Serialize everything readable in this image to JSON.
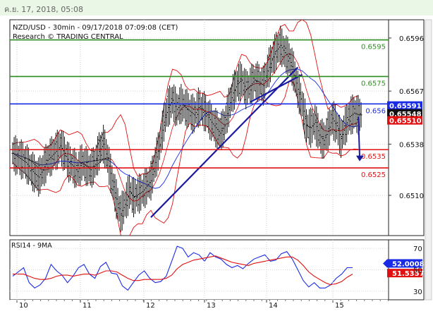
{
  "header": {
    "timestamp": "ค.ย. 17, 2018, 05:08"
  },
  "chart_data": [
    {
      "type": "line",
      "title": "NZD/USD - 30min - 09/17/2018 07:09:08 (CET)",
      "subtitle": "Research © TRADING CENTRAL",
      "ylim": [
        0.6488,
        0.6606
      ],
      "y_ticks": [
        {
          "value": 0.6596,
          "label": "0.6596"
        },
        {
          "value": 0.6567,
          "label": "0.6567"
        },
        {
          "value": 0.6538,
          "label": "0.6538"
        },
        {
          "value": 0.651,
          "label": "0.6510"
        }
      ],
      "x_ticks": [
        "10",
        "11",
        "12",
        "13",
        "14",
        "15"
      ],
      "levels": [
        {
          "value": 0.6595,
          "label": "0.6595",
          "color": "#2e8b22"
        },
        {
          "value": 0.6575,
          "label": "0.6575",
          "color": "#2e8b22"
        },
        {
          "value": 0.656,
          "label": "0.656",
          "color": "#1a2be6"
        },
        {
          "value": 0.6535,
          "label": "0.6535",
          "color": "#e01010"
        },
        {
          "value": 0.6525,
          "label": "0.6525",
          "color": "#e01010"
        }
      ],
      "price_badges": [
        {
          "value": 0.65591,
          "label": "0.65591",
          "bg": "#1a2be6"
        },
        {
          "value": 0.65548,
          "label": "0.65548",
          "bg": "#111111"
        },
        {
          "value": 0.6551,
          "label": "0.65510",
          "bg": "#e01010"
        }
      ],
      "price_path": [
        [
          0,
          0.6533
        ],
        [
          3,
          0.6528
        ],
        [
          5,
          0.6522
        ],
        [
          6,
          0.652
        ],
        [
          7,
          0.6524
        ],
        [
          8,
          0.6529
        ],
        [
          10,
          0.6534
        ],
        [
          11,
          0.6537
        ],
        [
          12,
          0.6533
        ],
        [
          13,
          0.6528
        ],
        [
          14,
          0.6526
        ],
        [
          15,
          0.6523
        ],
        [
          16,
          0.6528
        ],
        [
          17,
          0.6526
        ],
        [
          18,
          0.6524
        ],
        [
          19,
          0.6527
        ],
        [
          20,
          0.6534
        ],
        [
          21,
          0.6538
        ],
        [
          22,
          0.653
        ],
        [
          23,
          0.6518
        ],
        [
          24,
          0.6508
        ],
        [
          25,
          0.65
        ],
        [
          26,
          0.6505
        ],
        [
          27,
          0.6512
        ],
        [
          28,
          0.6509
        ],
        [
          30,
          0.6512
        ],
        [
          32,
          0.6518
        ],
        [
          33,
          0.6528
        ],
        [
          34,
          0.6537
        ],
        [
          35,
          0.655
        ],
        [
          36,
          0.6558
        ],
        [
          37,
          0.6562
        ],
        [
          38,
          0.6557
        ],
        [
          39,
          0.656
        ],
        [
          40,
          0.6558
        ],
        [
          41,
          0.6556
        ],
        [
          42,
          0.6554
        ],
        [
          43,
          0.6558
        ],
        [
          44,
          0.6557
        ],
        [
          45,
          0.6554
        ],
        [
          46,
          0.655
        ],
        [
          47,
          0.6547
        ],
        [
          48,
          0.6544
        ],
        [
          49,
          0.6548
        ],
        [
          50,
          0.6558
        ],
        [
          51,
          0.6566
        ],
        [
          52,
          0.6571
        ],
        [
          53,
          0.6573
        ],
        [
          54,
          0.6568
        ],
        [
          55,
          0.657
        ],
        [
          56,
          0.6573
        ],
        [
          57,
          0.6572
        ],
        [
          58,
          0.657
        ],
        [
          59,
          0.6578
        ],
        [
          60,
          0.6584
        ],
        [
          61,
          0.6589
        ],
        [
          62,
          0.6592
        ],
        [
          63,
          0.6588
        ],
        [
          64,
          0.6585
        ],
        [
          65,
          0.6578
        ],
        [
          66,
          0.6568
        ],
        [
          67,
          0.656
        ],
        [
          68,
          0.6548
        ],
        [
          69,
          0.6547
        ],
        [
          70,
          0.655
        ],
        [
          71,
          0.6543
        ],
        [
          72,
          0.654
        ],
        [
          73,
          0.6545
        ],
        [
          74,
          0.6552
        ],
        [
          75,
          0.6548
        ],
        [
          76,
          0.6541
        ],
        [
          77,
          0.6548
        ],
        [
          78,
          0.6553
        ],
        [
          79,
          0.6555
        ],
        [
          80,
          0.6554
        ]
      ],
      "trendlines": [
        {
          "from": [
            32,
            0.6498
          ],
          "to": [
            66,
            0.658
          ],
          "color": "#1a1a9e"
        },
        {
          "from": [
            55,
            0.6561
          ],
          "to": [
            67,
            0.6576
          ],
          "color": "#1a1a9e"
        }
      ],
      "forecast_arrow": {
        "from": [
          80,
          0.6553
        ],
        "to": [
          80,
          0.6529
        ],
        "color": "#1a1a9e"
      }
    },
    {
      "type": "line",
      "title": "RSI14 - 9MA",
      "ylim": [
        22,
        78
      ],
      "y_ticks": [
        {
          "value": 70,
          "label": "70"
        },
        {
          "value": 50,
          "label": "50"
        },
        {
          "value": 30,
          "label": "30"
        }
      ],
      "series": [
        {
          "values": [
            44,
            48,
            52,
            38,
            33,
            36,
            42,
            55,
            49,
            45,
            38,
            44,
            52,
            55,
            46,
            42,
            53,
            57,
            47,
            46,
            35,
            31,
            38,
            45,
            49,
            42,
            38,
            39,
            44,
            58,
            72,
            70,
            62,
            66,
            64,
            58,
            66,
            62,
            60,
            55,
            52,
            54,
            51,
            56,
            60,
            62,
            64,
            58,
            59,
            65,
            67,
            60,
            50,
            40,
            34,
            38,
            33,
            33,
            36,
            42,
            46,
            52,
            52
          ],
          "color": "#1a2be6"
        },
        {
          "values": [
            46,
            46,
            46,
            44,
            42,
            41,
            41,
            42,
            44,
            45,
            45,
            44,
            45,
            46,
            46,
            45,
            47,
            49,
            49,
            48,
            45,
            42,
            40,
            40,
            41,
            41,
            41,
            41,
            42,
            45,
            51,
            55,
            57,
            59,
            60,
            61,
            62,
            63,
            61,
            59,
            57,
            56,
            55,
            54,
            56,
            57,
            58,
            59,
            60,
            61,
            62,
            62,
            59,
            54,
            48,
            44,
            41,
            38,
            36,
            37,
            39,
            43,
            46
          ],
          "color": "#e01010"
        }
      ],
      "badges": [
        {
          "value": 52.0008,
          "label": "52.0008",
          "bg": "#1a2be6"
        },
        {
          "value": 51.5357,
          "label": "51.5357",
          "bg": "#e01010"
        }
      ]
    }
  ]
}
